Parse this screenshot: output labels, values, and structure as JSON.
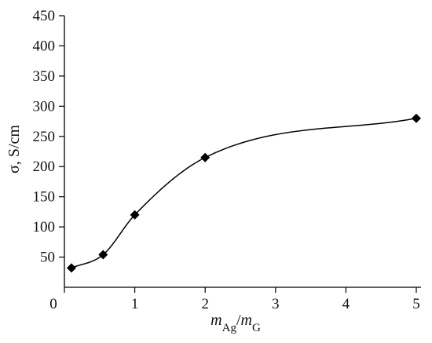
{
  "chart_data": {
    "type": "scatter",
    "title": "",
    "xlabel": {
      "m1": "m",
      "sub1": "Ag",
      "slash": "/",
      "m2": "m",
      "sub2": "G"
    },
    "ylabel": "σ, S/cm",
    "xlim": [
      0,
      5
    ],
    "ylim": [
      0,
      450
    ],
    "xticks": [
      0,
      1,
      2,
      3,
      4,
      5
    ],
    "yticks": [
      50,
      100,
      150,
      200,
      250,
      300,
      350,
      400,
      450
    ],
    "grid": false,
    "legend": "none",
    "series": [
      {
        "marker": "diamond",
        "smooth_line": true,
        "x": [
          0.1,
          0.55,
          1.0,
          2.0,
          5.0
        ],
        "y": [
          32,
          54,
          120,
          215,
          280
        ]
      }
    ]
  }
}
